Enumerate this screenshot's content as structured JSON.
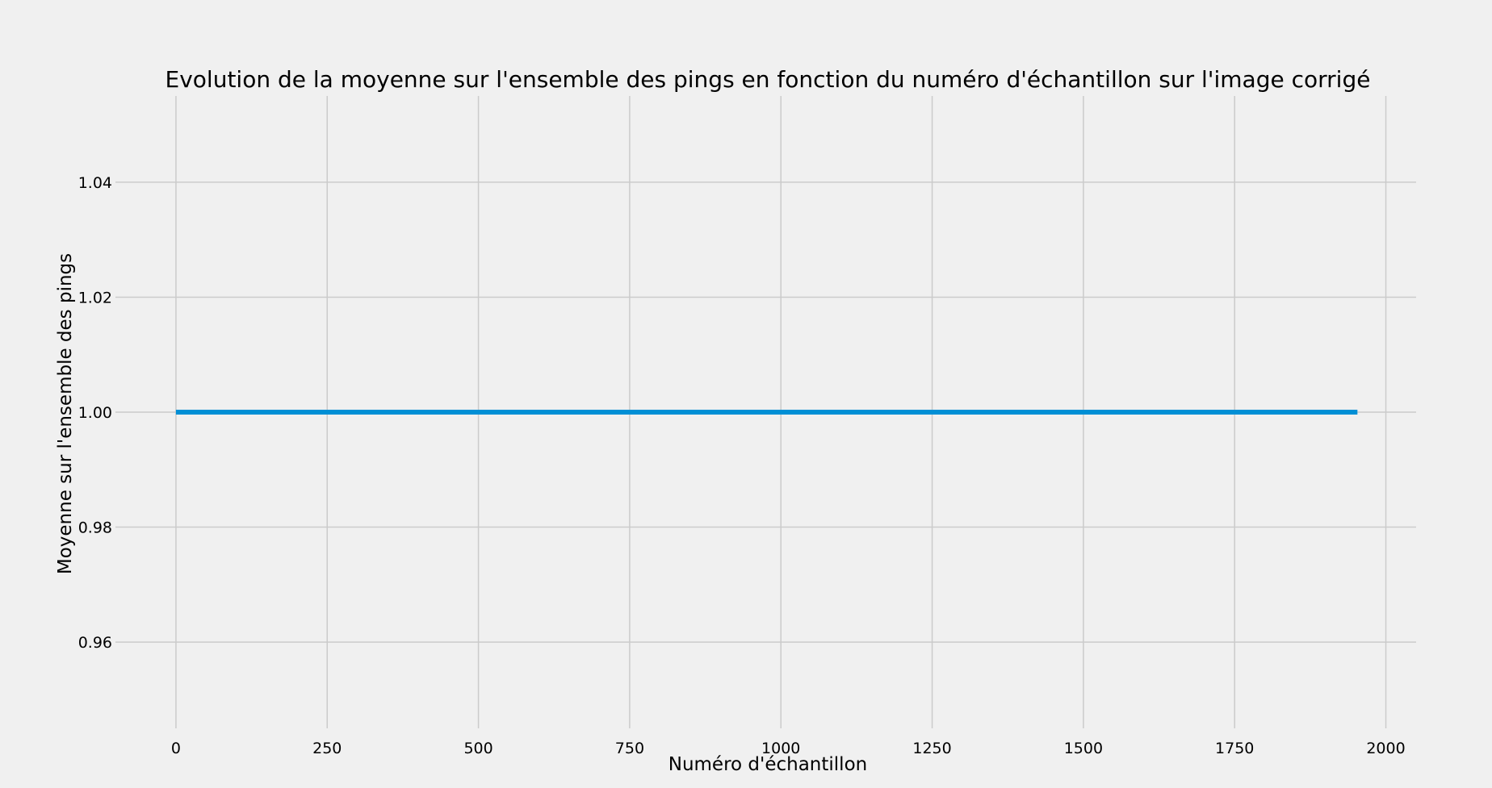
{
  "chart_data": {
    "type": "line",
    "title": "Evolution de la moyenne sur l'ensemble des pings en fonction du numéro d'échantillon sur l'image corrigé",
    "xlabel": "Numéro d'échantillon",
    "ylabel": "Moyenne sur l'ensemble des pings",
    "xlim": [
      -100,
      2050
    ],
    "ylim": [
      0.945,
      1.055
    ],
    "x_ticks": [
      0,
      250,
      500,
      750,
      1000,
      1250,
      1500,
      1750,
      2000
    ],
    "x_tick_labels": [
      "0",
      "250",
      "500",
      "750",
      "1000",
      "1250",
      "1500",
      "1750",
      "2000"
    ],
    "y_ticks": [
      0.96,
      0.98,
      1.0,
      1.02,
      1.04
    ],
    "y_tick_labels": [
      "0.96",
      "0.98",
      "1.00",
      "1.02",
      "1.04"
    ],
    "grid": true,
    "legend": "none",
    "series": [
      {
        "color": "#008fd5",
        "x": [
          0,
          1953
        ],
        "y": [
          1.0,
          1.0
        ]
      }
    ]
  },
  "colors": {
    "background": "#f0f0f0",
    "grid": "#cbcbcb",
    "text": "#000000"
  }
}
